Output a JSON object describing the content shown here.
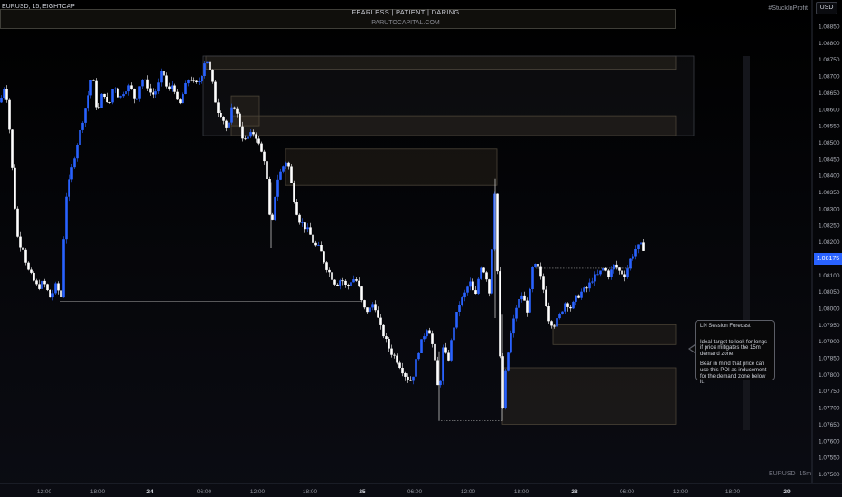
{
  "header": {
    "symbol_line": "EURUSD, 15, EIGHTCAP",
    "brand_line1": "FEARLESS  |  PATIENT  |  DARING",
    "brand_line2": "PARUTOCAPITAL.COM",
    "hashtag": "#StuckInProfit",
    "currency": "USD"
  },
  "footer": {
    "symbol": "EURUSD",
    "interval": "15m"
  },
  "price_axis": {
    "labels": [
      "1.08850",
      "1.08800",
      "1.08750",
      "1.08700",
      "1.08650",
      "1.08600",
      "1.08550",
      "1.08500",
      "1.08450",
      "1.08400",
      "1.08350",
      "1.08300",
      "1.08250",
      "1.08200",
      "1.08150",
      "1.08100",
      "1.08050",
      "1.08000",
      "1.07950",
      "1.07900",
      "1.07850",
      "1.07800",
      "1.07750",
      "1.07700",
      "1.07650",
      "1.07600",
      "1.07550",
      "1.07500"
    ],
    "current_price": "1.08175",
    "current_price_color": "#2962ff"
  },
  "time_axis": {
    "labels": [
      "12:00",
      "18:00",
      "24",
      "06:00",
      "12:00",
      "18:00",
      "25",
      "06:00",
      "12:00",
      "18:00",
      "28",
      "06:00",
      "12:00",
      "18:00",
      "29"
    ],
    "bold": [
      "24",
      "25",
      "28",
      "29"
    ]
  },
  "annotation": {
    "title": "LN Session Forecast",
    "separator": "-------",
    "para1": "Ideal target to look for longs if price mitigates the 15m demand zone.",
    "para2": "Bear in mind that price can use this POI as inducement for the demand zone below it."
  },
  "colors": {
    "bull": "#2962ff",
    "bear": "#ffffff",
    "zone": "#3a3326",
    "background": "#000000"
  },
  "chart_data": {
    "type": "candlestick",
    "symbol": "EURUSD",
    "interval": "15",
    "ylim": [
      1.075,
      1.089
    ],
    "yticks": [
      1.0885,
      1.088,
      1.0875,
      1.087,
      1.0865,
      1.086,
      1.0855,
      1.085,
      1.0845,
      1.084,
      1.0835,
      1.083,
      1.0825,
      1.082,
      1.0815,
      1.081,
      1.0805,
      1.08,
      1.0795,
      1.079,
      1.0785,
      1.078,
      1.0775,
      1.077,
      1.0765,
      1.076,
      1.0755,
      1.075
    ],
    "path": [
      [
        0,
        1.0862
      ],
      [
        6,
        1.0868
      ],
      [
        10,
        1.0856
      ],
      [
        16,
        1.0832
      ],
      [
        20,
        1.082
      ],
      [
        26,
        1.0818
      ],
      [
        30,
        1.0812
      ],
      [
        36,
        1.0809
      ],
      [
        42,
        1.0806
      ],
      [
        48,
        1.0808
      ],
      [
        56,
        1.0803
      ],
      [
        62,
        1.0807
      ],
      [
        68,
        1.0803
      ],
      [
        72,
        1.0832
      ],
      [
        78,
        1.084
      ],
      [
        84,
        1.0848
      ],
      [
        90,
        1.0855
      ],
      [
        96,
        1.0862
      ],
      [
        102,
        1.0871
      ],
      [
        108,
        1.0858
      ],
      [
        114,
        1.0866
      ],
      [
        120,
        1.086
      ],
      [
        126,
        1.0868
      ],
      [
        132,
        1.0863
      ],
      [
        138,
        1.0866
      ],
      [
        144,
        1.0867
      ],
      [
        150,
        1.0862
      ],
      [
        156,
        1.0869
      ],
      [
        162,
        1.0868
      ],
      [
        168,
        1.0864
      ],
      [
        174,
        1.0866
      ],
      [
        180,
        1.0872
      ],
      [
        186,
        1.0865
      ],
      [
        192,
        1.0868
      ],
      [
        198,
        1.086
      ],
      [
        204,
        1.0866
      ],
      [
        210,
        1.087
      ],
      [
        216,
        1.0867
      ],
      [
        222,
        1.0869
      ],
      [
        228,
        1.0876
      ],
      [
        234,
        1.087
      ],
      [
        240,
        1.086
      ],
      [
        246,
        1.0858
      ],
      [
        252,
        1.0853
      ],
      [
        258,
        1.0862
      ],
      [
        264,
        1.0857
      ],
      [
        270,
        1.085
      ],
      [
        276,
        1.0852
      ],
      [
        282,
        1.0853
      ],
      [
        288,
        1.0848
      ],
      [
        294,
        1.0844
      ],
      [
        300,
        1.0822
      ],
      [
        306,
        1.0838
      ],
      [
        312,
        1.0842
      ],
      [
        318,
        1.0845
      ],
      [
        324,
        1.0835
      ],
      [
        330,
        1.0827
      ],
      [
        336,
        1.0825
      ],
      [
        342,
        1.0823
      ],
      [
        348,
        1.0819
      ],
      [
        354,
        1.0818
      ],
      [
        360,
        1.0813
      ],
      [
        366,
        1.081
      ],
      [
        372,
        1.0807
      ],
      [
        378,
        1.0809
      ],
      [
        384,
        1.0806
      ],
      [
        390,
        1.0809
      ],
      [
        396,
        1.0808
      ],
      [
        402,
        1.08
      ],
      [
        408,
        1.0799
      ],
      [
        414,
        1.0802
      ],
      [
        420,
        1.0795
      ],
      [
        426,
        1.0791
      ],
      [
        432,
        1.0787
      ],
      [
        438,
        1.0785
      ],
      [
        444,
        1.0782
      ],
      [
        450,
        1.0779
      ],
      [
        456,
        1.0778
      ],
      [
        462,
        1.0786
      ],
      [
        468,
        1.0791
      ],
      [
        474,
        1.0795
      ],
      [
        480,
        1.0787
      ],
      [
        486,
        1.0773
      ],
      [
        490,
        1.0788
      ],
      [
        496,
        1.0784
      ],
      [
        502,
        1.0794
      ],
      [
        508,
        1.0801
      ],
      [
        514,
        1.0804
      ],
      [
        520,
        1.0808
      ],
      [
        526,
        1.0803
      ],
      [
        532,
        1.0813
      ],
      [
        538,
        1.081
      ],
      [
        542,
        1.0804
      ],
      [
        548,
        1.0838
      ],
      [
        552,
        1.0795
      ],
      [
        556,
        1.0768
      ],
      [
        560,
        1.0782
      ],
      [
        566,
        1.0793
      ],
      [
        572,
        1.0801
      ],
      [
        578,
        1.0804
      ],
      [
        584,
        1.0799
      ],
      [
        590,
        1.0813
      ],
      [
        596,
        1.0812
      ],
      [
        602,
        1.0805
      ],
      [
        608,
        1.0796
      ],
      [
        614,
        1.0795
      ],
      [
        620,
        1.0798
      ],
      [
        626,
        1.0802
      ],
      [
        632,
        1.08
      ],
      [
        638,
        1.0803
      ],
      [
        644,
        1.0805
      ],
      [
        650,
        1.0806
      ],
      [
        656,
        1.0809
      ],
      [
        662,
        1.081
      ],
      [
        668,
        1.0812
      ],
      [
        674,
        1.081
      ],
      [
        680,
        1.0813
      ],
      [
        686,
        1.0811
      ],
      [
        692,
        1.081
      ],
      [
        698,
        1.0815
      ],
      [
        704,
        1.0818
      ],
      [
        710,
        1.0819
      ],
      [
        714,
        1.08175
      ]
    ],
    "zones": [
      {
        "x0": 228,
        "x1": 748,
        "y_top": 1.0876,
        "y_bottom": 1.0872
      },
      {
        "x0": 225,
        "x1": 768,
        "y_top": 1.0876,
        "y_bottom": 1.0852
      },
      {
        "x0": 256,
        "x1": 287,
        "y_top": 1.0864,
        "y_bottom": 1.0855
      },
      {
        "x0": 256,
        "x1": 748,
        "y_top": 1.0858,
        "y_bottom": 1.0852
      },
      {
        "x0": 316,
        "x1": 550,
        "y_top": 1.0848,
        "y_bottom": 1.0837
      },
      {
        "x0": 612,
        "x1": 748,
        "y_top": 1.0795,
        "y_bottom": 1.0789
      },
      {
        "x0": 556,
        "x1": 748,
        "y_top": 1.0782,
        "y_bottom": 1.0765
      }
    ],
    "levels": [
      {
        "x0": 66,
        "x1": 400,
        "y": 1.0802,
        "style": "solid"
      },
      {
        "x0": 593,
        "x1": 700,
        "y": 1.0812,
        "style": "dotted"
      },
      {
        "x0": 488,
        "x1": 556,
        "y": 1.0766,
        "style": "dotted"
      }
    ]
  }
}
